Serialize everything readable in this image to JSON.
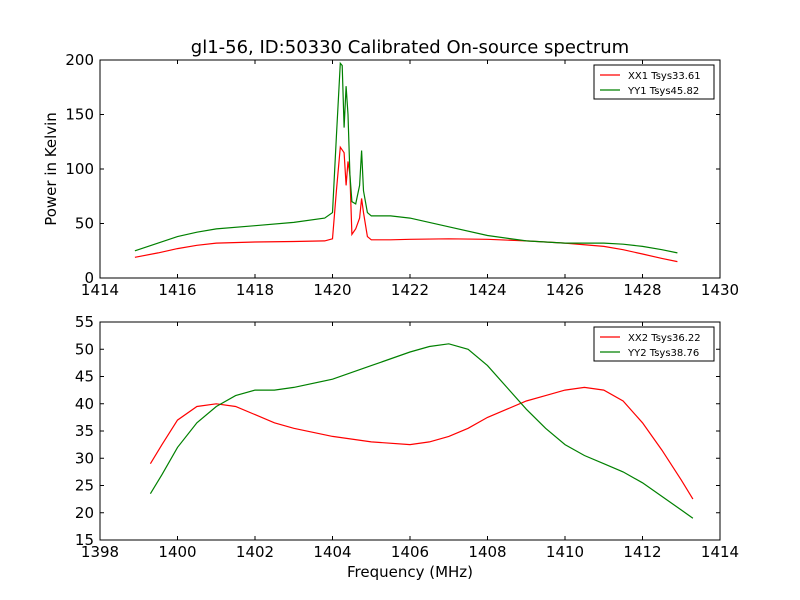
{
  "figure": {
    "title": "gl1-56, ID:50330 Calibrated On-source spectrum"
  },
  "chart_data": [
    {
      "type": "line",
      "title": "gl1-56, ID:50330 Calibrated On-source spectrum",
      "xlabel": "",
      "ylabel": "Power in Kelvin",
      "xlim": [
        1414,
        1430
      ],
      "ylim": [
        0,
        200
      ],
      "xticks": [
        1414,
        1416,
        1418,
        1420,
        1422,
        1424,
        1426,
        1428,
        1430
      ],
      "yticks": [
        0,
        50,
        100,
        150,
        200
      ],
      "grid": false,
      "legend": "top-right",
      "series": [
        {
          "name": "XX1 Tsys33.61",
          "color": "#ff0000",
          "x": [
            1414.9,
            1415.5,
            1416.0,
            1416.5,
            1417.0,
            1418.0,
            1419.0,
            1419.8,
            1420.0,
            1420.1,
            1420.2,
            1420.3,
            1420.35,
            1420.4,
            1420.45,
            1420.5,
            1420.6,
            1420.7,
            1420.75,
            1420.8,
            1420.9,
            1421.0,
            1421.5,
            1422.0,
            1423.0,
            1424.0,
            1425.0,
            1426.0,
            1427.0,
            1427.5,
            1428.0,
            1428.5,
            1428.9
          ],
          "y": [
            19,
            23,
            27,
            30,
            32,
            33,
            33.5,
            34,
            36,
            80,
            120,
            115,
            85,
            107,
            95,
            40,
            45,
            55,
            73,
            60,
            38,
            35,
            35,
            35.5,
            36,
            35.5,
            34,
            32,
            29,
            26,
            22,
            18,
            15
          ]
        },
        {
          "name": "YY1 Tsys45.82",
          "color": "#008000",
          "x": [
            1414.9,
            1415.5,
            1416.0,
            1416.5,
            1417.0,
            1418.0,
            1419.0,
            1419.8,
            1420.0,
            1420.1,
            1420.2,
            1420.25,
            1420.3,
            1420.35,
            1420.4,
            1420.45,
            1420.5,
            1420.6,
            1420.7,
            1420.75,
            1420.8,
            1420.9,
            1421.0,
            1421.5,
            1422.0,
            1423.0,
            1424.0,
            1425.0,
            1426.0,
            1427.0,
            1427.5,
            1428.0,
            1428.5,
            1428.9
          ],
          "y": [
            25,
            32,
            38,
            42,
            45,
            48,
            51,
            55,
            60,
            130,
            197,
            195,
            138,
            176,
            150,
            95,
            70,
            68,
            85,
            117,
            80,
            60,
            57,
            57,
            55,
            47,
            39,
            34,
            32,
            32,
            31,
            29,
            26,
            23
          ]
        }
      ]
    },
    {
      "type": "line",
      "title": "",
      "xlabel": "Frequency (MHz)",
      "ylabel": "",
      "xlim": [
        1398,
        1414
      ],
      "ylim": [
        15,
        55
      ],
      "xticks": [
        1398,
        1400,
        1402,
        1404,
        1406,
        1408,
        1410,
        1412,
        1414
      ],
      "yticks": [
        15,
        20,
        25,
        30,
        35,
        40,
        45,
        50,
        55
      ],
      "grid": false,
      "legend": "top-right",
      "series": [
        {
          "name": "XX2 Tsys36.22",
          "color": "#ff0000",
          "x": [
            1399.3,
            1399.6,
            1400.0,
            1400.5,
            1401.0,
            1401.5,
            1402.0,
            1402.5,
            1403.0,
            1404.0,
            1405.0,
            1406.0,
            1406.5,
            1407.0,
            1407.5,
            1408.0,
            1408.5,
            1409.0,
            1409.5,
            1410.0,
            1410.5,
            1411.0,
            1411.5,
            1412.0,
            1412.5,
            1413.0,
            1413.3
          ],
          "y": [
            29,
            32.5,
            37,
            39.5,
            40,
            39.5,
            38,
            36.5,
            35.5,
            34,
            33,
            32.5,
            33,
            34,
            35.5,
            37.5,
            39,
            40.5,
            41.5,
            42.5,
            43,
            42.5,
            40.5,
            36.5,
            31.5,
            26,
            22.5
          ]
        },
        {
          "name": "YY2 Tsys38.76",
          "color": "#008000",
          "x": [
            1399.3,
            1399.6,
            1400.0,
            1400.5,
            1401.0,
            1401.5,
            1402.0,
            1402.5,
            1403.0,
            1404.0,
            1405.0,
            1406.0,
            1406.5,
            1407.0,
            1407.5,
            1408.0,
            1408.5,
            1409.0,
            1409.5,
            1410.0,
            1410.5,
            1411.0,
            1411.5,
            1412.0,
            1412.5,
            1413.0,
            1413.3
          ],
          "y": [
            23.5,
            27,
            32,
            36.5,
            39.5,
            41.5,
            42.5,
            42.5,
            43,
            44.5,
            47,
            49.5,
            50.5,
            51,
            50,
            47,
            43,
            39,
            35.5,
            32.5,
            30.5,
            29,
            27.5,
            25.5,
            23,
            20.5,
            19
          ]
        }
      ]
    }
  ]
}
